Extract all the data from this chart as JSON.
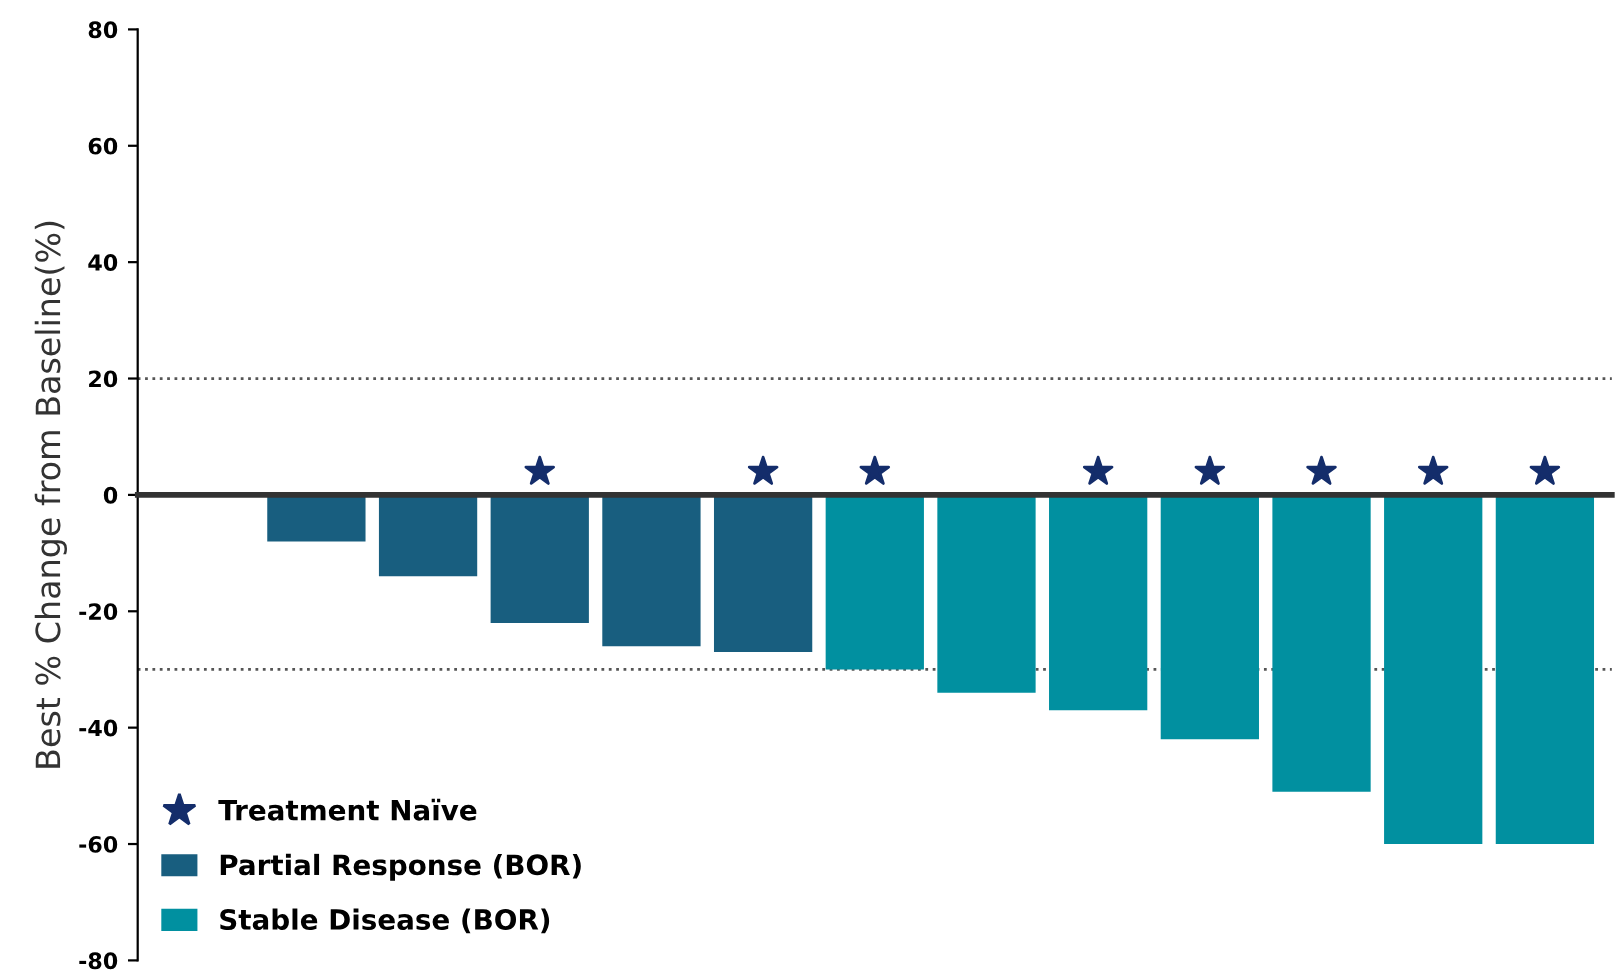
{
  "chart_data": {
    "type": "bar",
    "ylabel": "Best % Change from Baseline(%)",
    "categories": [
      null,
      null,
      null,
      null,
      null,
      null,
      null,
      null,
      null,
      null,
      null,
      null,
      null
    ],
    "series": [
      {
        "name": "Partial Response (BOR)",
        "color": "#185e7f",
        "values": [
          null,
          -8,
          -14,
          -22,
          -26,
          -27,
          null,
          null,
          null,
          null,
          null,
          null,
          null
        ]
      },
      {
        "name": "Stable Disease (BOR)",
        "color": "#0190a0",
        "values": [
          null,
          null,
          null,
          null,
          null,
          null,
          -30,
          -34,
          -37,
          -42,
          -51,
          -60,
          -60
        ]
      },
      {
        "name": "Treatment Naïve",
        "type": "scatter",
        "marker": "star",
        "color": "#142d6b",
        "values": [
          null,
          null,
          null,
          4,
          null,
          4,
          4,
          null,
          4,
          4,
          4,
          4,
          4
        ]
      }
    ],
    "ylim": [
      -80,
      80
    ],
    "yticks": [
      -80,
      -60,
      -40,
      -20,
      0,
      20,
      40,
      60,
      80
    ],
    "ref_lines": [
      {
        "axis": "y",
        "value": 20,
        "line_style": "dotted",
        "color": "#555555"
      },
      {
        "axis": "y",
        "value": -30,
        "line_style": "dotted",
        "color": "#555555"
      }
    ],
    "grid": false,
    "legend": "bottom left"
  }
}
